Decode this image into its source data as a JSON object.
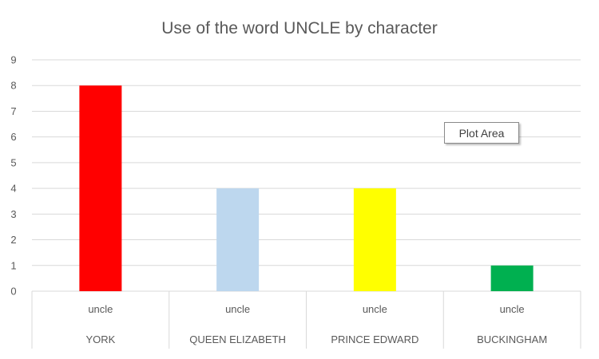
{
  "chart_data": {
    "type": "bar",
    "title": "Use of the word UNCLE by character",
    "xlabel": "",
    "ylabel": "",
    "ylim": [
      0,
      9
    ],
    "yticks": [
      0,
      1,
      2,
      3,
      4,
      5,
      6,
      7,
      8,
      9
    ],
    "grid": true,
    "legend": "none",
    "group_label": "uncle",
    "categories": [
      "YORK",
      "QUEEN ELIZABETH",
      "PRINCE EDWARD",
      "BUCKINGHAM"
    ],
    "values": [
      8,
      4,
      4,
      1
    ],
    "colors": [
      "#ff0000",
      "#bdd7ee",
      "#ffff00",
      "#00b050"
    ]
  },
  "tooltip": {
    "label": "Plot Area"
  }
}
